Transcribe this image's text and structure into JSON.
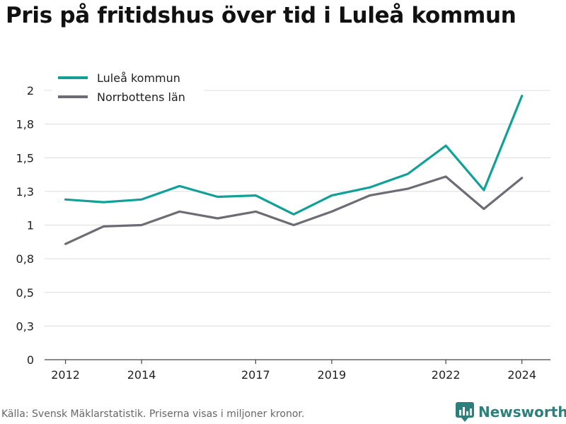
{
  "title": "Pris på fritidshus över tid i Luleå kommun",
  "source": "Källa: Svensk Mäklarstatistik. Priserna visas i miljoner kronor.",
  "brand": {
    "name": "Newsworthy",
    "icon": "bar-chart-logo-icon",
    "color": "#2c7f7a"
  },
  "chart_data": {
    "type": "line",
    "x": [
      2012,
      2013,
      2014,
      2015,
      2016,
      2017,
      2018,
      2019,
      2020,
      2021,
      2022,
      2023,
      2024
    ],
    "xticks": [
      2012,
      2014,
      2017,
      2019,
      2022,
      2024
    ],
    "yticks": [
      0,
      0.25,
      0.5,
      0.75,
      1,
      1.25,
      1.5,
      1.75,
      2
    ],
    "ytick_labels": [
      "0",
      "0,3",
      "0,5",
      "0,8",
      "1",
      "1,3",
      "1,5",
      "1,8",
      "2"
    ],
    "ylim": [
      0,
      2
    ],
    "grid": true,
    "legend_position": "top-left",
    "series": [
      {
        "name": "Luleå kommun",
        "color": "#11a097",
        "values": [
          1.19,
          1.17,
          1.19,
          1.29,
          1.21,
          1.22,
          1.08,
          1.22,
          1.28,
          1.38,
          1.59,
          1.26,
          1.96
        ]
      },
      {
        "name": "Norrbottens län",
        "color": "#6d6b73",
        "values": [
          0.86,
          0.99,
          1.0,
          1.1,
          1.05,
          1.1,
          1.0,
          1.1,
          1.22,
          1.27,
          1.36,
          1.12,
          1.35
        ]
      }
    ]
  }
}
